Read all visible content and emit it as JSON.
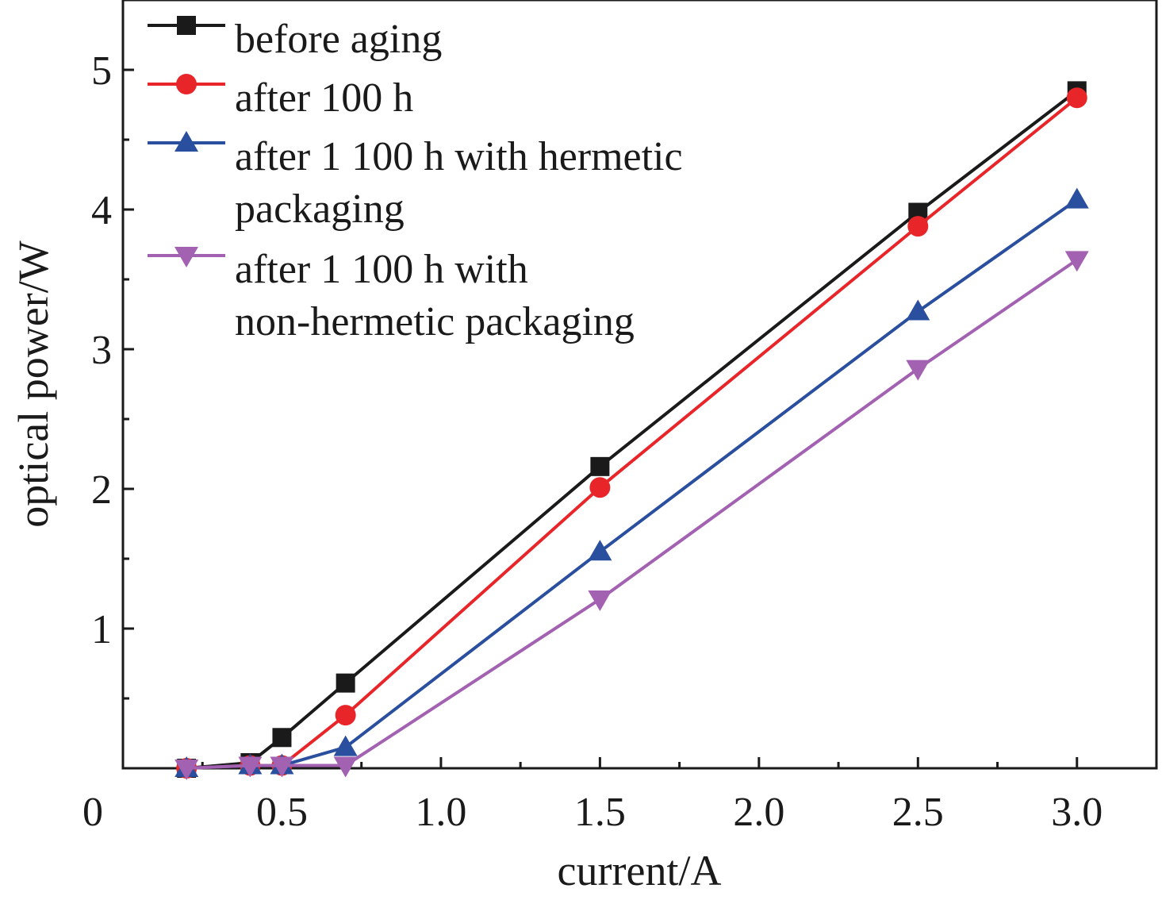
{
  "chart_data": {
    "type": "line",
    "title": "",
    "xlabel": "current/A",
    "ylabel": "optical power/W",
    "xlim": [
      0.0,
      3.25
    ],
    "ylim": [
      0,
      5.5
    ],
    "x_ticks": [
      0.5,
      1.0,
      1.5,
      2.0,
      2.5,
      3.0
    ],
    "x_tick_labels": [
      "0.5",
      "1.0",
      "1.5",
      "2.0",
      "2.5",
      "3.0"
    ],
    "y_ticks": [
      1,
      2,
      3,
      4,
      5
    ],
    "y_tick_labels": [
      "1",
      "2",
      "3",
      "4",
      "5"
    ],
    "origin_label": "0",
    "grid": false,
    "legend_position": "top-left",
    "series": [
      {
        "name": "before aging",
        "legend_lines": [
          "before aging"
        ],
        "color": "#1a1a1a",
        "marker": "square",
        "x": [
          0.2,
          0.4,
          0.5,
          0.7,
          1.5,
          2.5,
          3.0
        ],
        "y": [
          0.0,
          0.04,
          0.22,
          0.61,
          2.16,
          3.98,
          4.85
        ]
      },
      {
        "name": "after 100 h",
        "legend_lines": [
          "after 100 h"
        ],
        "color": "#e8262a",
        "marker": "circle",
        "x": [
          0.2,
          0.4,
          0.5,
          0.7,
          1.5,
          2.5,
          3.0
        ],
        "y": [
          0.0,
          0.02,
          0.02,
          0.38,
          2.01,
          3.88,
          4.8
        ]
      },
      {
        "name": "after 1 100 h with hermetic packaging",
        "legend_lines": [
          "after 1 100 h with hermetic",
          "packaging"
        ],
        "color": "#2a4f9e",
        "marker": "triangle-up",
        "x": [
          0.2,
          0.4,
          0.5,
          0.7,
          1.5,
          2.5,
          3.0
        ],
        "y": [
          0.0,
          0.02,
          0.02,
          0.15,
          1.55,
          3.27,
          4.07
        ]
      },
      {
        "name": "after 1 100 h with non-hermetic packaging",
        "legend_lines": [
          "after 1 100 h with",
          "non-hermetic packaging"
        ],
        "color": "#a361b2",
        "marker": "triangle-down",
        "x": [
          0.2,
          0.4,
          0.5,
          0.7,
          1.5,
          2.5,
          3.0
        ],
        "y": [
          0.0,
          0.02,
          0.02,
          0.02,
          1.21,
          2.86,
          3.64
        ]
      }
    ]
  }
}
